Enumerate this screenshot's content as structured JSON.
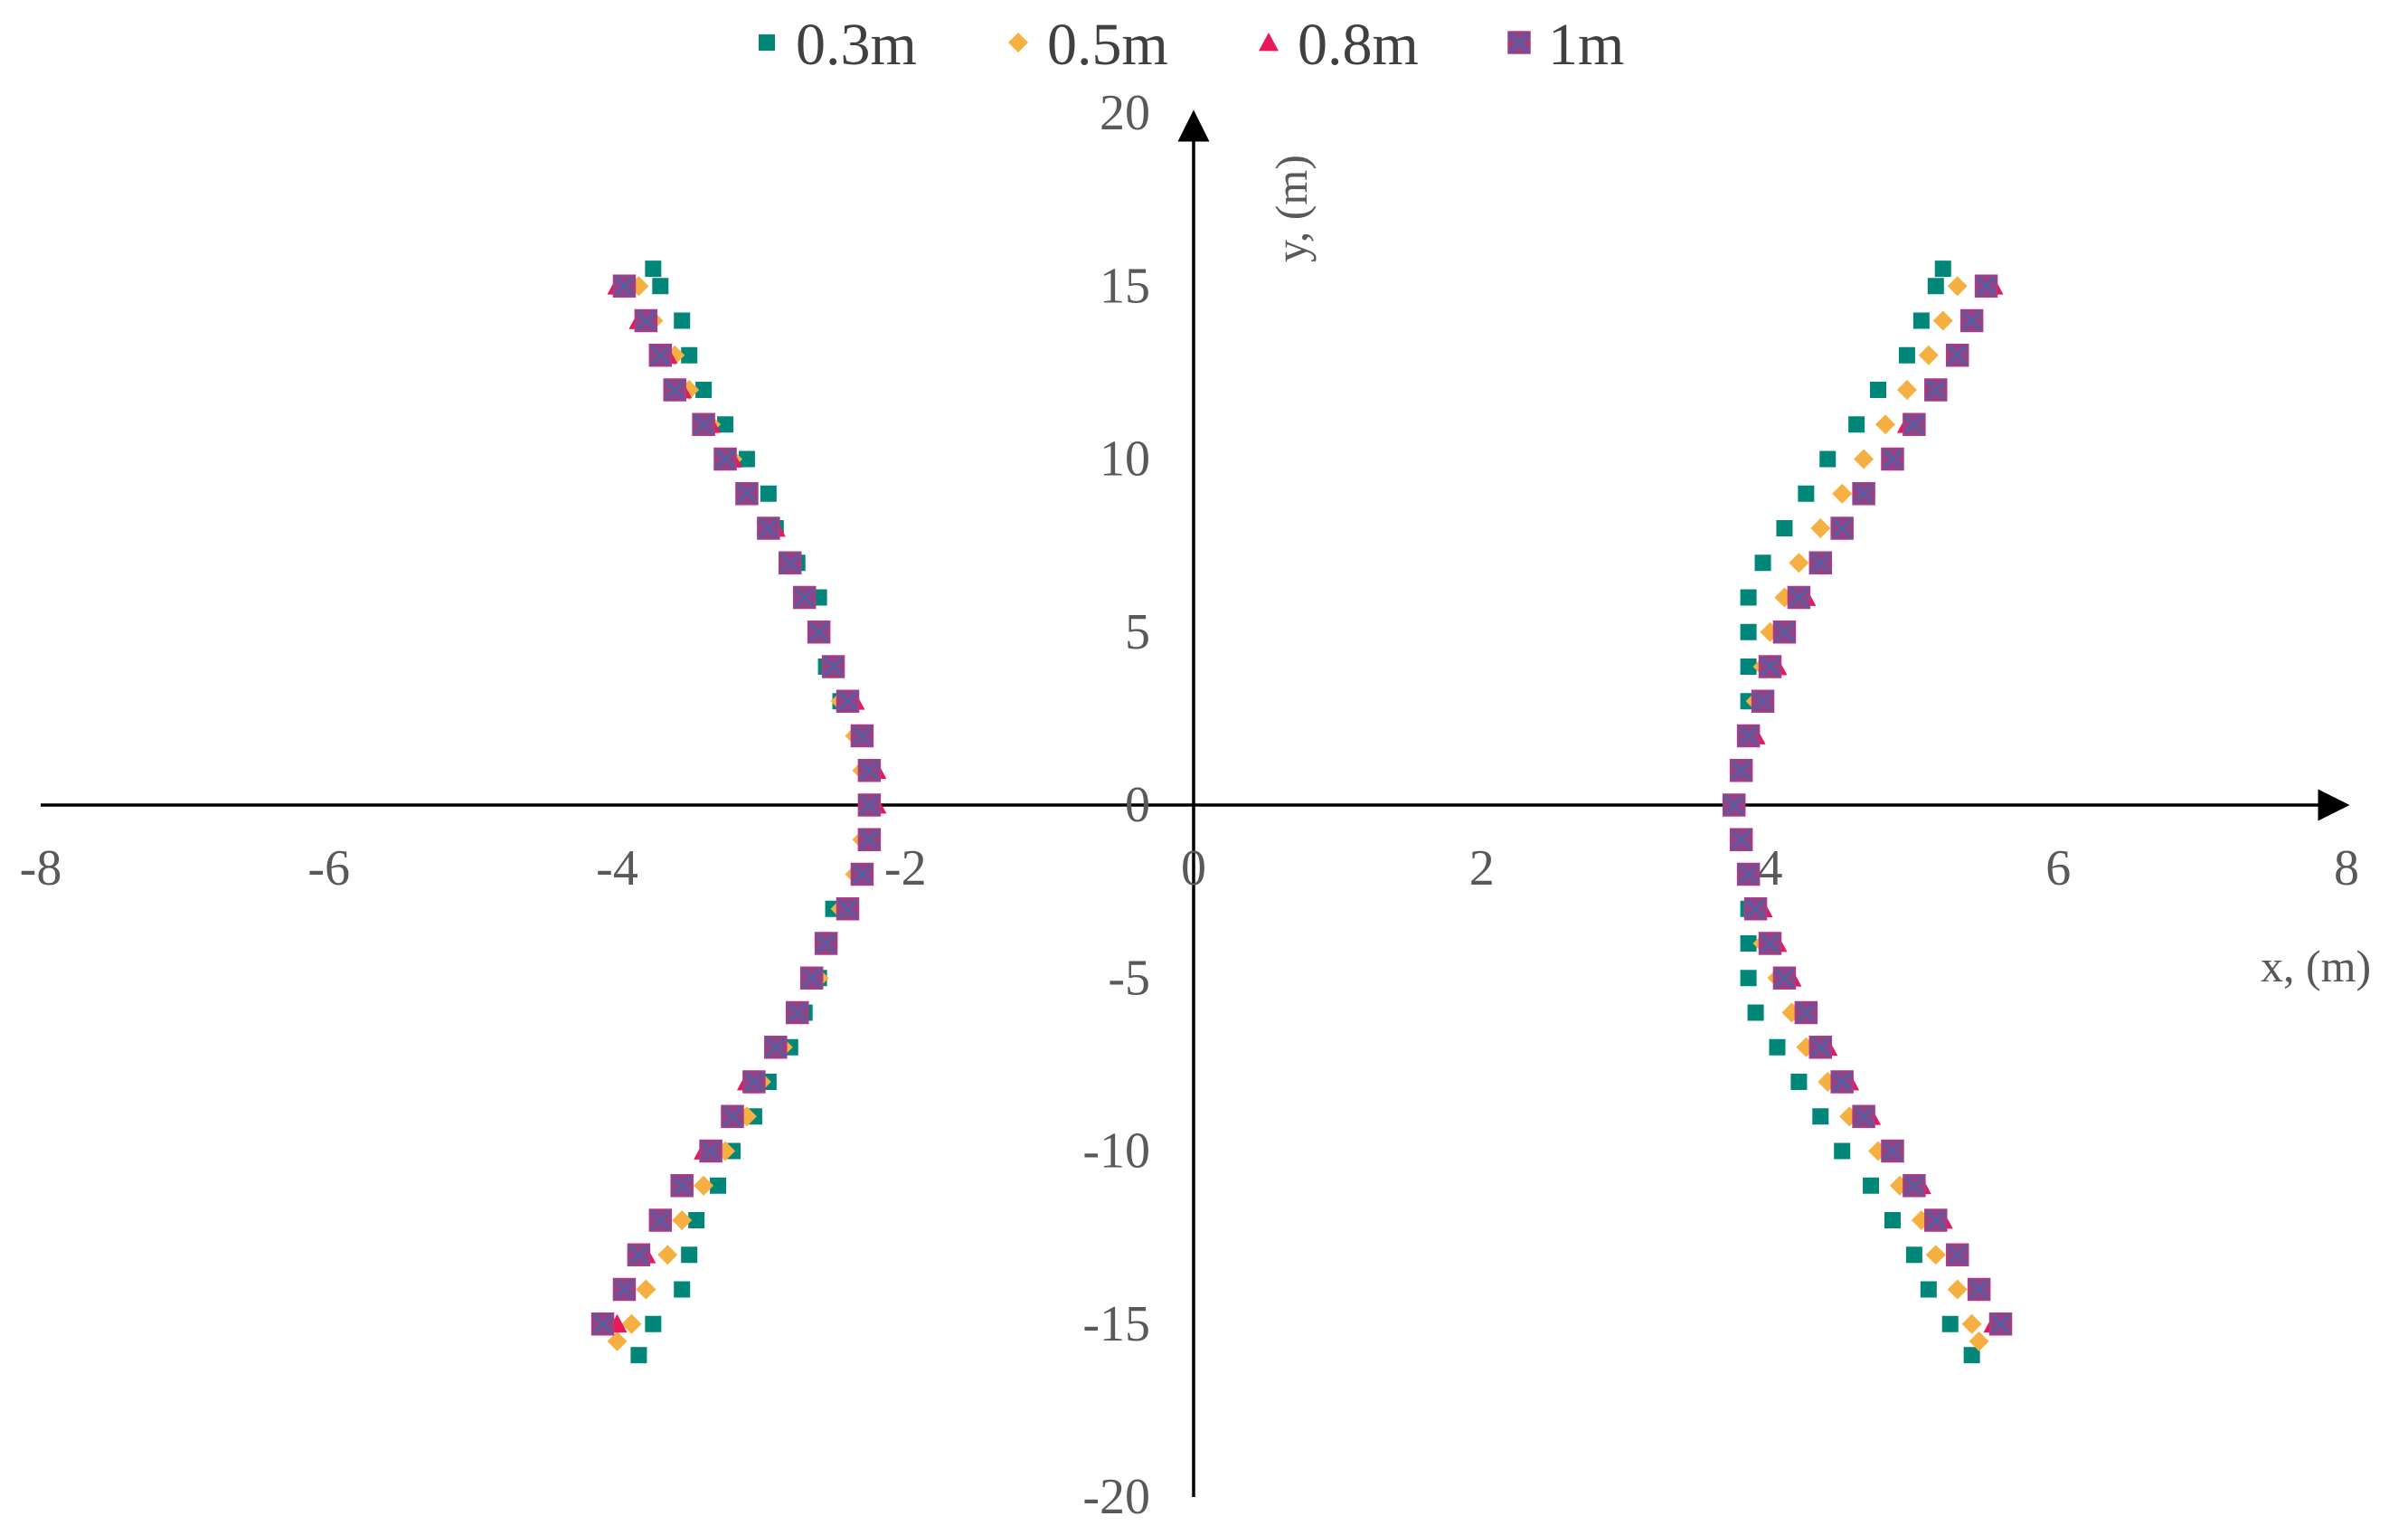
{
  "chart_data": {
    "type": "scatter",
    "title": "",
    "xlabel": "x, (m)",
    "ylabel": "y, (m)",
    "xlim": [
      -8,
      8
    ],
    "ylim": [
      -20,
      20
    ],
    "xticks": [
      "-8",
      "-6",
      "-4",
      "-2",
      "0",
      "2",
      "4",
      "6",
      "8"
    ],
    "yticks": [
      "-20",
      "-15",
      "-10",
      "-5",
      "0",
      "5",
      "10",
      "15",
      "20"
    ],
    "grid": false,
    "legend_position": "top",
    "series": [
      {
        "name": "0.3m",
        "marker": "square",
        "color": "#00877a",
        "left": [
          [
            -2.25,
            0
          ],
          [
            -2.25,
            1
          ],
          [
            -2.3,
            2
          ],
          [
            -2.45,
            3
          ],
          [
            -2.55,
            4
          ],
          [
            -2.6,
            5
          ],
          [
            -2.6,
            6
          ],
          [
            -2.75,
            7
          ],
          [
            -2.9,
            8
          ],
          [
            -2.95,
            9
          ],
          [
            -3.1,
            10
          ],
          [
            -3.25,
            11
          ],
          [
            -3.4,
            12
          ],
          [
            -3.5,
            13
          ],
          [
            -3.55,
            14
          ],
          [
            -3.7,
            15
          ],
          [
            -3.75,
            15.5
          ],
          [
            -2.25,
            -1
          ],
          [
            -2.3,
            -2
          ],
          [
            -2.5,
            -3
          ],
          [
            -2.55,
            -4
          ],
          [
            -2.6,
            -5
          ],
          [
            -2.7,
            -6
          ],
          [
            -2.8,
            -7
          ],
          [
            -2.95,
            -8
          ],
          [
            -3.05,
            -9
          ],
          [
            -3.2,
            -10
          ],
          [
            -3.3,
            -11
          ],
          [
            -3.45,
            -12
          ],
          [
            -3.5,
            -13
          ],
          [
            -3.55,
            -14
          ],
          [
            -3.75,
            -15
          ],
          [
            -3.85,
            -15.9
          ]
        ],
        "right": [
          [
            3.75,
            0
          ],
          [
            3.8,
            1
          ],
          [
            3.85,
            2
          ],
          [
            3.85,
            3
          ],
          [
            3.85,
            4
          ],
          [
            3.85,
            5
          ],
          [
            3.85,
            6
          ],
          [
            3.95,
            7
          ],
          [
            4.1,
            8
          ],
          [
            4.25,
            9
          ],
          [
            4.4,
            10
          ],
          [
            4.6,
            11
          ],
          [
            4.75,
            12
          ],
          [
            4.95,
            13
          ],
          [
            5.05,
            14
          ],
          [
            5.15,
            15
          ],
          [
            5.2,
            15.5
          ],
          [
            3.8,
            -1
          ],
          [
            3.85,
            -2
          ],
          [
            3.85,
            -3
          ],
          [
            3.85,
            -4
          ],
          [
            3.85,
            -5
          ],
          [
            3.9,
            -6
          ],
          [
            4.05,
            -7
          ],
          [
            4.2,
            -8
          ],
          [
            4.35,
            -9
          ],
          [
            4.5,
            -10
          ],
          [
            4.7,
            -11
          ],
          [
            4.85,
            -12
          ],
          [
            5.0,
            -13
          ],
          [
            5.1,
            -14
          ],
          [
            5.25,
            -15
          ],
          [
            5.4,
            -15.9
          ]
        ]
      },
      {
        "name": "0.5m",
        "marker": "diamond",
        "color": "#f5b041",
        "left": [
          [
            -2.25,
            0
          ],
          [
            -2.3,
            1
          ],
          [
            -2.35,
            2
          ],
          [
            -2.45,
            3
          ],
          [
            -2.5,
            4
          ],
          [
            -2.6,
            5
          ],
          [
            -2.7,
            6
          ],
          [
            -2.8,
            7
          ],
          [
            -2.95,
            8
          ],
          [
            -3.1,
            9
          ],
          [
            -3.2,
            10
          ],
          [
            -3.35,
            11
          ],
          [
            -3.5,
            12
          ],
          [
            -3.6,
            13
          ],
          [
            -3.75,
            14
          ],
          [
            -3.85,
            15
          ],
          [
            -2.3,
            -1
          ],
          [
            -2.35,
            -2
          ],
          [
            -2.45,
            -3
          ],
          [
            -2.55,
            -4
          ],
          [
            -2.6,
            -5
          ],
          [
            -2.75,
            -6
          ],
          [
            -2.85,
            -7
          ],
          [
            -3.0,
            -8
          ],
          [
            -3.1,
            -9
          ],
          [
            -3.25,
            -10
          ],
          [
            -3.4,
            -11
          ],
          [
            -3.55,
            -12
          ],
          [
            -3.65,
            -13
          ],
          [
            -3.8,
            -14
          ],
          [
            -3.9,
            -15
          ],
          [
            -4.0,
            -15.5
          ]
        ],
        "right": [
          [
            3.75,
            0
          ],
          [
            3.8,
            1
          ],
          [
            3.85,
            2
          ],
          [
            3.9,
            3
          ],
          [
            3.95,
            4
          ],
          [
            4.0,
            5
          ],
          [
            4.1,
            6
          ],
          [
            4.2,
            7
          ],
          [
            4.35,
            8
          ],
          [
            4.5,
            9
          ],
          [
            4.65,
            10
          ],
          [
            4.8,
            11
          ],
          [
            4.95,
            12
          ],
          [
            5.1,
            13
          ],
          [
            5.2,
            14
          ],
          [
            5.3,
            15
          ],
          [
            3.8,
            -1
          ],
          [
            3.85,
            -2
          ],
          [
            3.9,
            -3
          ],
          [
            3.95,
            -4
          ],
          [
            4.05,
            -5
          ],
          [
            4.15,
            -6
          ],
          [
            4.25,
            -7
          ],
          [
            4.4,
            -8
          ],
          [
            4.55,
            -9
          ],
          [
            4.75,
            -10
          ],
          [
            4.9,
            -11
          ],
          [
            5.05,
            -12
          ],
          [
            5.15,
            -13
          ],
          [
            5.3,
            -14
          ],
          [
            5.4,
            -15
          ],
          [
            5.45,
            -15.5
          ]
        ]
      },
      {
        "name": "0.8m",
        "marker": "triangle",
        "color": "#e8185a",
        "left": [
          [
            -2.2,
            0
          ],
          [
            -2.2,
            1
          ],
          [
            -2.3,
            2
          ],
          [
            -2.35,
            3
          ],
          [
            -2.5,
            4
          ],
          [
            -2.6,
            5
          ],
          [
            -2.7,
            6
          ],
          [
            -2.8,
            7
          ],
          [
            -2.9,
            8
          ],
          [
            -3.1,
            9
          ],
          [
            -3.2,
            10
          ],
          [
            -3.35,
            11
          ],
          [
            -3.55,
            12
          ],
          [
            -3.65,
            13
          ],
          [
            -3.85,
            14
          ],
          [
            -4.0,
            15
          ],
          [
            -2.25,
            -1
          ],
          [
            -2.3,
            -2
          ],
          [
            -2.4,
            -3
          ],
          [
            -2.55,
            -4
          ],
          [
            -2.65,
            -5
          ],
          [
            -2.75,
            -6
          ],
          [
            -2.9,
            -7
          ],
          [
            -3.1,
            -8
          ],
          [
            -3.2,
            -9
          ],
          [
            -3.4,
            -10
          ],
          [
            -3.55,
            -11
          ],
          [
            -3.7,
            -12
          ],
          [
            -3.8,
            -13
          ],
          [
            -3.95,
            -14
          ],
          [
            -4.0,
            -15
          ]
        ],
        "right": [
          [
            3.75,
            0
          ],
          [
            3.8,
            1
          ],
          [
            3.9,
            2
          ],
          [
            3.95,
            3
          ],
          [
            4.05,
            4
          ],
          [
            4.1,
            5
          ],
          [
            4.25,
            6
          ],
          [
            4.35,
            7
          ],
          [
            4.5,
            8
          ],
          [
            4.65,
            9
          ],
          [
            4.85,
            10
          ],
          [
            4.95,
            11
          ],
          [
            5.15,
            12
          ],
          [
            5.3,
            13
          ],
          [
            5.4,
            14
          ],
          [
            5.55,
            15
          ],
          [
            3.8,
            -1
          ],
          [
            3.85,
            -2
          ],
          [
            3.95,
            -3
          ],
          [
            4.05,
            -4
          ],
          [
            4.15,
            -5
          ],
          [
            4.25,
            -6
          ],
          [
            4.4,
            -7
          ],
          [
            4.55,
            -8
          ],
          [
            4.7,
            -9
          ],
          [
            4.85,
            -10
          ],
          [
            5.05,
            -11
          ],
          [
            5.2,
            -12
          ],
          [
            5.3,
            -13
          ],
          [
            5.45,
            -14
          ],
          [
            5.55,
            -15
          ]
        ]
      },
      {
        "name": "1m",
        "marker": "square-x",
        "color": "#8e4585",
        "left": [
          [
            -2.25,
            0
          ],
          [
            -2.25,
            1
          ],
          [
            -2.3,
            2
          ],
          [
            -2.4,
            3
          ],
          [
            -2.5,
            4
          ],
          [
            -2.6,
            5
          ],
          [
            -2.7,
            6
          ],
          [
            -2.8,
            7
          ],
          [
            -2.95,
            8
          ],
          [
            -3.1,
            9
          ],
          [
            -3.25,
            10
          ],
          [
            -3.4,
            11
          ],
          [
            -3.6,
            12
          ],
          [
            -3.7,
            13
          ],
          [
            -3.8,
            14
          ],
          [
            -3.95,
            15
          ],
          [
            -2.25,
            -1
          ],
          [
            -2.3,
            -2
          ],
          [
            -2.4,
            -3
          ],
          [
            -2.55,
            -4
          ],
          [
            -2.65,
            -5
          ],
          [
            -2.75,
            -6
          ],
          [
            -2.9,
            -7
          ],
          [
            -3.05,
            -8
          ],
          [
            -3.2,
            -9
          ],
          [
            -3.35,
            -10
          ],
          [
            -3.55,
            -11
          ],
          [
            -3.7,
            -12
          ],
          [
            -3.85,
            -13
          ],
          [
            -3.95,
            -14
          ],
          [
            -4.1,
            -15
          ]
        ],
        "right": [
          [
            3.75,
            0
          ],
          [
            3.8,
            1
          ],
          [
            3.85,
            2
          ],
          [
            3.95,
            3
          ],
          [
            4.0,
            4
          ],
          [
            4.1,
            5
          ],
          [
            4.2,
            6
          ],
          [
            4.35,
            7
          ],
          [
            4.5,
            8
          ],
          [
            4.65,
            9
          ],
          [
            4.85,
            10
          ],
          [
            5.0,
            11
          ],
          [
            5.15,
            12
          ],
          [
            5.3,
            13
          ],
          [
            5.4,
            14
          ],
          [
            5.5,
            15
          ],
          [
            3.8,
            -1
          ],
          [
            3.85,
            -2
          ],
          [
            3.9,
            -3
          ],
          [
            4.0,
            -4
          ],
          [
            4.1,
            -5
          ],
          [
            4.25,
            -6
          ],
          [
            4.35,
            -7
          ],
          [
            4.5,
            -8
          ],
          [
            4.65,
            -9
          ],
          [
            4.85,
            -10
          ],
          [
            5.0,
            -11
          ],
          [
            5.15,
            -12
          ],
          [
            5.3,
            -13
          ],
          [
            5.45,
            -14
          ],
          [
            5.6,
            -15
          ]
        ]
      }
    ]
  }
}
